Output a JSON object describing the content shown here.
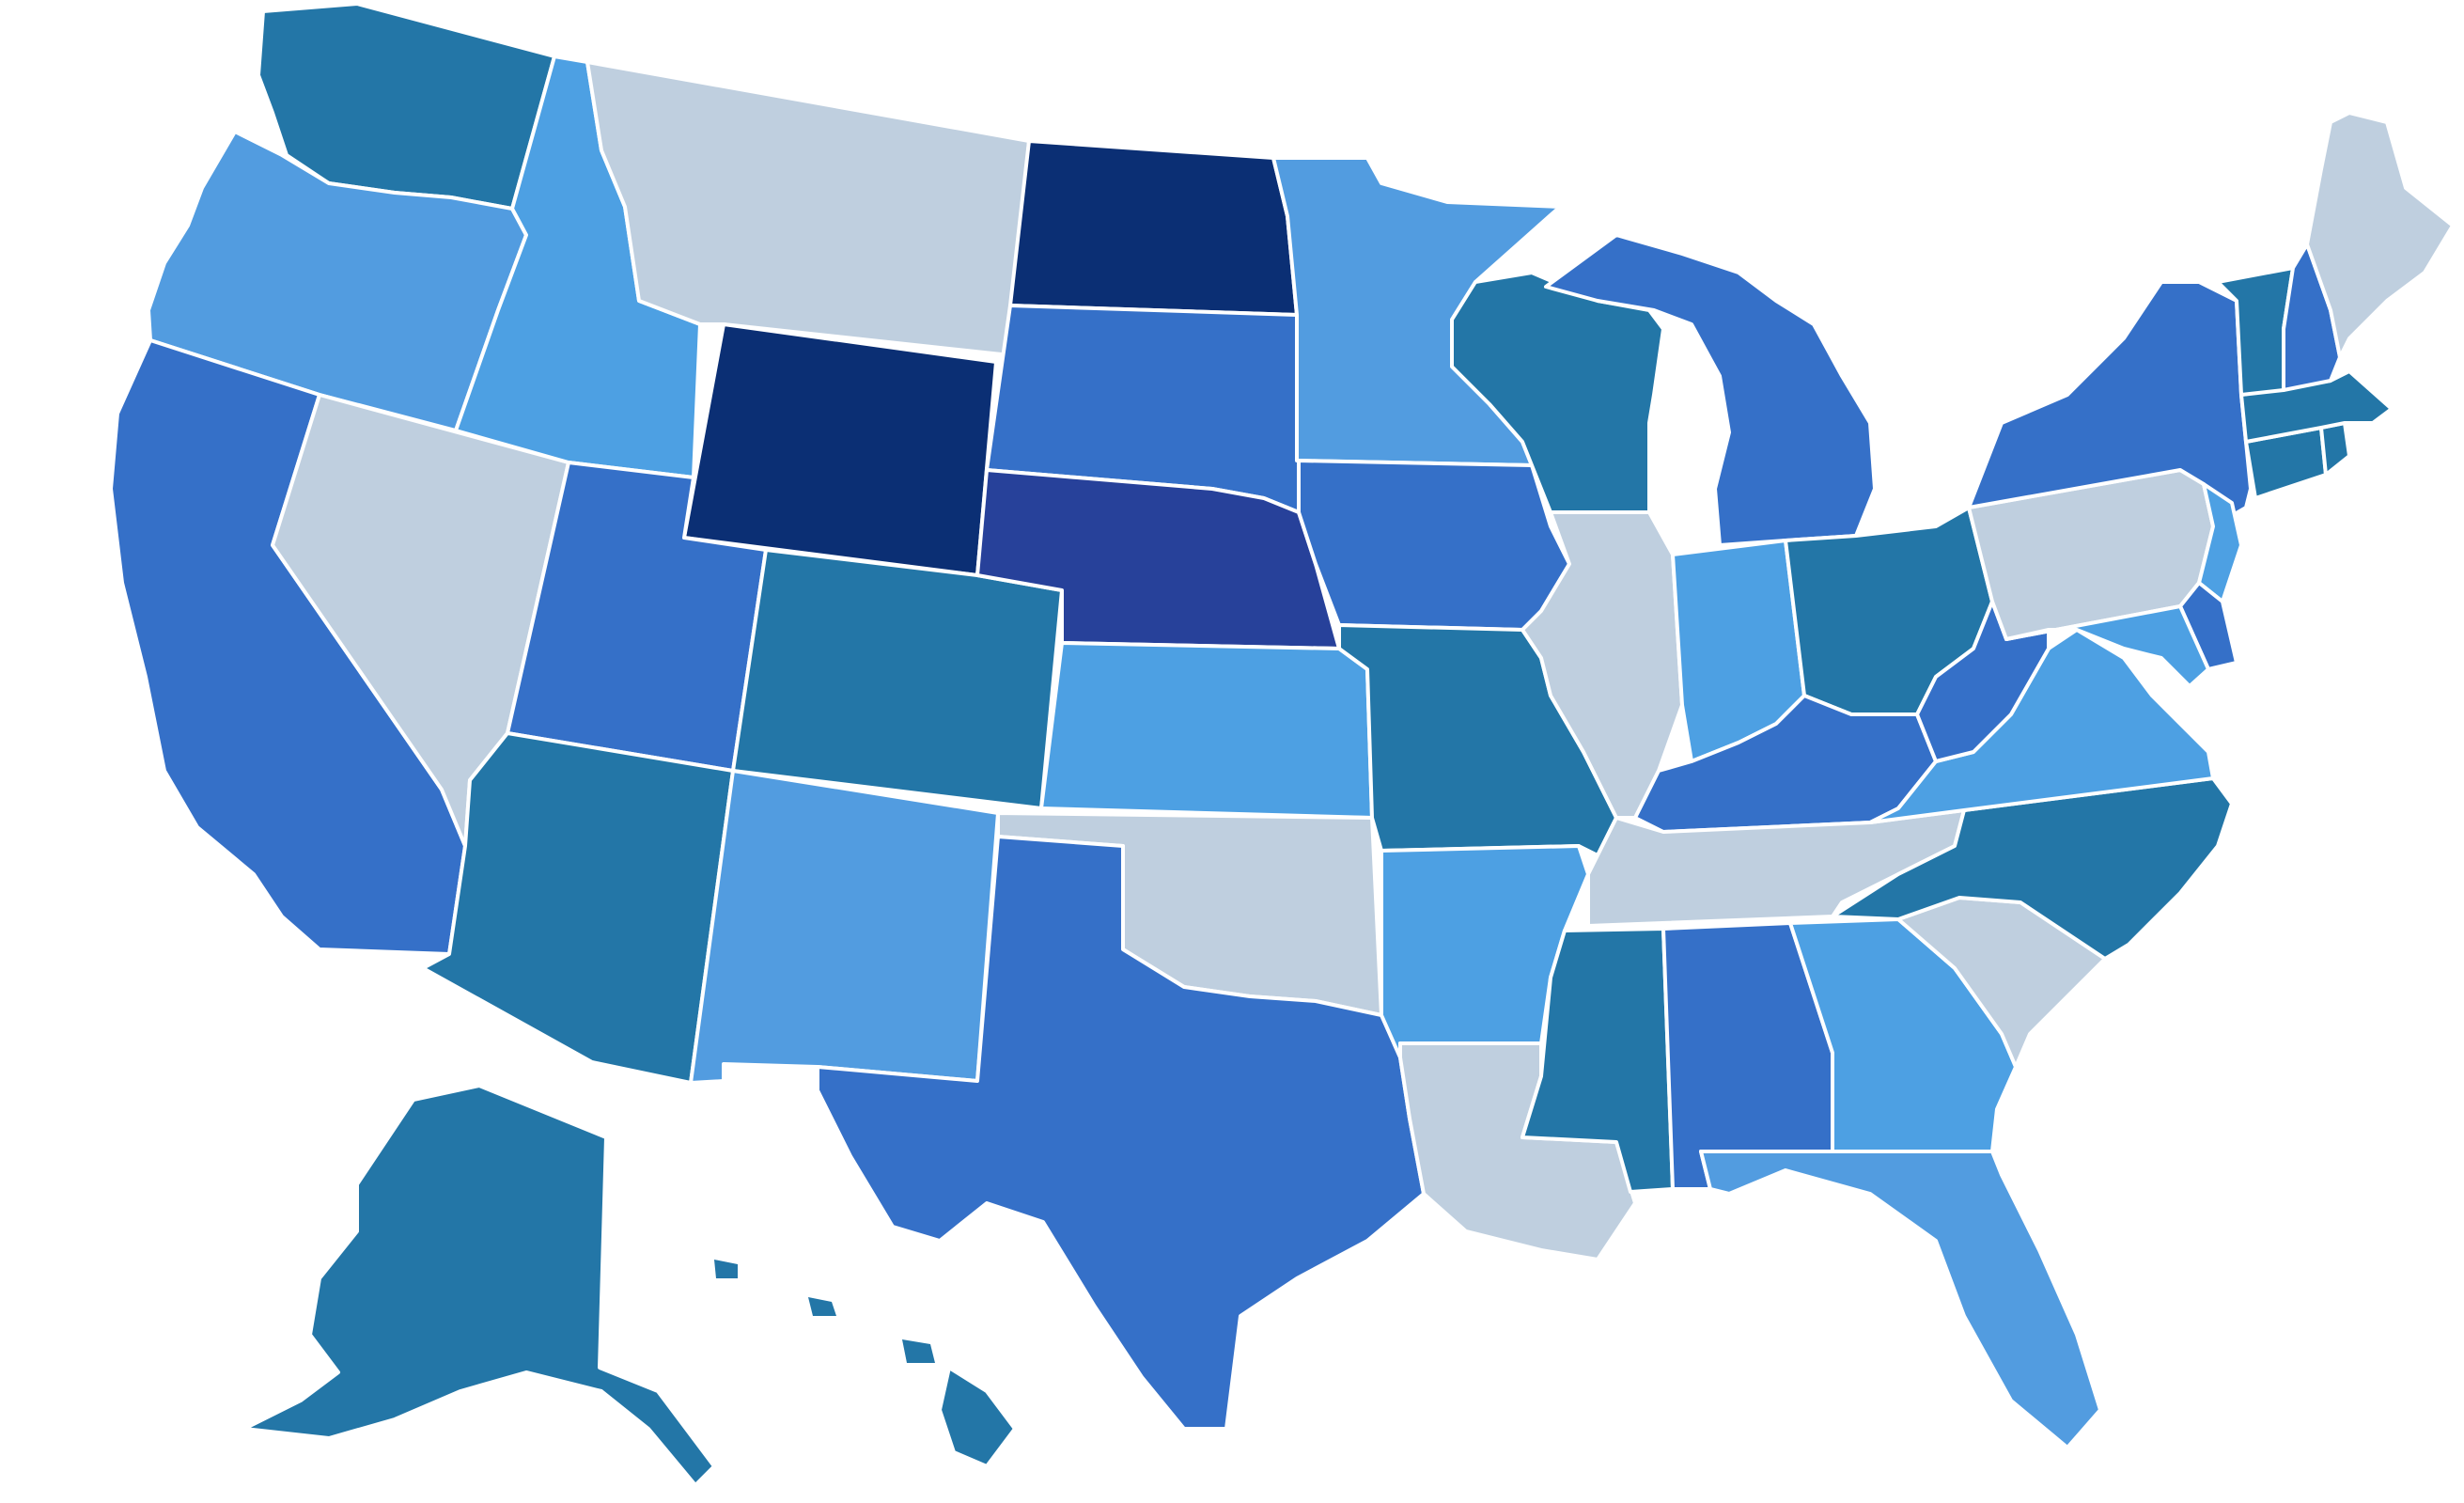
{
  "map": {
    "type": "choropleth",
    "region": "United States",
    "legend": null,
    "color_classes": {
      "lightest": "#bfcfdf",
      "light": "#4da0e3",
      "mid_light": "#529ce0",
      "medium": "#3570c8",
      "teal": "#2376a7",
      "indigo": "#27419a",
      "darkest": "#0b2f74"
    },
    "states": [
      {
        "id": "WA",
        "class": "teal"
      },
      {
        "id": "OR",
        "class": "mid_light"
      },
      {
        "id": "CA",
        "class": "medium"
      },
      {
        "id": "NV",
        "class": "lightest"
      },
      {
        "id": "ID",
        "class": "light"
      },
      {
        "id": "MT",
        "class": "lightest"
      },
      {
        "id": "WY",
        "class": "darkest"
      },
      {
        "id": "UT",
        "class": "medium"
      },
      {
        "id": "AZ",
        "class": "teal"
      },
      {
        "id": "CO",
        "class": "teal"
      },
      {
        "id": "NM",
        "class": "mid_light"
      },
      {
        "id": "ND",
        "class": "darkest"
      },
      {
        "id": "SD",
        "class": "medium"
      },
      {
        "id": "NE",
        "class": "indigo"
      },
      {
        "id": "KS",
        "class": "light"
      },
      {
        "id": "OK",
        "class": "lightest"
      },
      {
        "id": "TX",
        "class": "medium"
      },
      {
        "id": "MN",
        "class": "mid_light"
      },
      {
        "id": "IA",
        "class": "medium"
      },
      {
        "id": "MO",
        "class": "teal"
      },
      {
        "id": "AR",
        "class": "light"
      },
      {
        "id": "LA",
        "class": "lightest"
      },
      {
        "id": "WI",
        "class": "teal"
      },
      {
        "id": "IL",
        "class": "lightest"
      },
      {
        "id": "MI",
        "class": "medium"
      },
      {
        "id": "IN",
        "class": "light"
      },
      {
        "id": "OH",
        "class": "teal"
      },
      {
        "id": "KY",
        "class": "medium"
      },
      {
        "id": "TN",
        "class": "lightest"
      },
      {
        "id": "MS",
        "class": "teal"
      },
      {
        "id": "AL",
        "class": "medium"
      },
      {
        "id": "GA",
        "class": "light"
      },
      {
        "id": "FL",
        "class": "mid_light"
      },
      {
        "id": "SC",
        "class": "lightest"
      },
      {
        "id": "NC",
        "class": "teal"
      },
      {
        "id": "VA",
        "class": "light"
      },
      {
        "id": "WV",
        "class": "medium"
      },
      {
        "id": "PA",
        "class": "lightest"
      },
      {
        "id": "NY",
        "class": "medium"
      },
      {
        "id": "NJ",
        "class": "light"
      },
      {
        "id": "DE",
        "class": "medium"
      },
      {
        "id": "MD",
        "class": "light"
      },
      {
        "id": "CT",
        "class": "teal"
      },
      {
        "id": "RI",
        "class": "teal"
      },
      {
        "id": "MA",
        "class": "teal"
      },
      {
        "id": "VT",
        "class": "teal"
      },
      {
        "id": "NH",
        "class": "medium"
      },
      {
        "id": "ME",
        "class": "lightest"
      },
      {
        "id": "AK",
        "class": "teal"
      },
      {
        "id": "HI",
        "class": "teal"
      }
    ]
  }
}
